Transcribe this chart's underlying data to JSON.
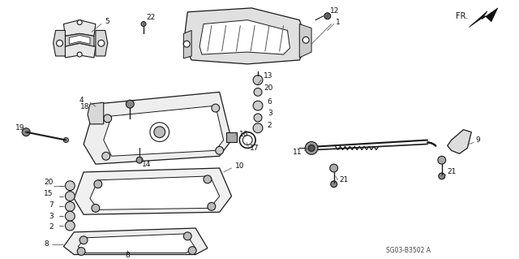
{
  "bg_color": "#ffffff",
  "line_color": "#1a1a1a",
  "figure_width": 6.4,
  "figure_height": 3.19,
  "dpi": 100,
  "diagram_code": "SG03-B3502 A",
  "fr_label": "FR."
}
